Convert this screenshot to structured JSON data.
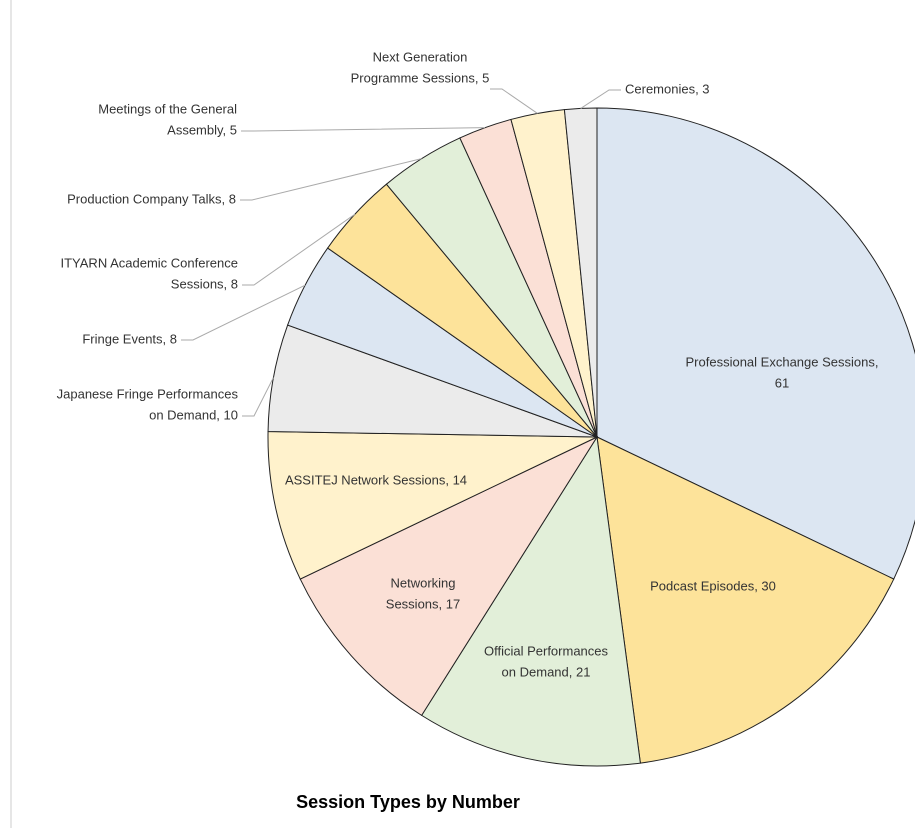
{
  "chart_data": {
    "type": "pie",
    "title": "Session Types by Number",
    "labels": [
      [
        "Professional Exchange Sessions,",
        "61"
      ],
      [
        "Podcast Episodes, 30"
      ],
      [
        "Official Performances",
        "on Demand, 21"
      ],
      [
        "Networking",
        "Sessions, 17"
      ],
      [
        "ASSITEJ Network Sessions, 14"
      ],
      [
        "Japanese Fringe Performances",
        "on Demand, 10"
      ],
      [
        "Fringe Events, 8"
      ],
      [
        "ITYARN Academic Conference",
        "Sessions, 8"
      ],
      [
        "Production Company Talks, 8"
      ],
      [
        "Meetings of the General",
        "Assembly, 5"
      ],
      [
        "Next Generation",
        "Programme Sessions, 5"
      ],
      [
        "Ceremonies, 3"
      ]
    ],
    "values": [
      61,
      30,
      21,
      17,
      14,
      10,
      8,
      8,
      8,
      5,
      5,
      3
    ],
    "colors": [
      "#dce6f2",
      "#fde39a",
      "#e2efd9",
      "#fbe0d6",
      "#fff2cc",
      "#ebebeb",
      "#dce6f2",
      "#fde39a",
      "#e2efd9",
      "#fbe0d6",
      "#fff2cc",
      "#ebebeb"
    ]
  }
}
